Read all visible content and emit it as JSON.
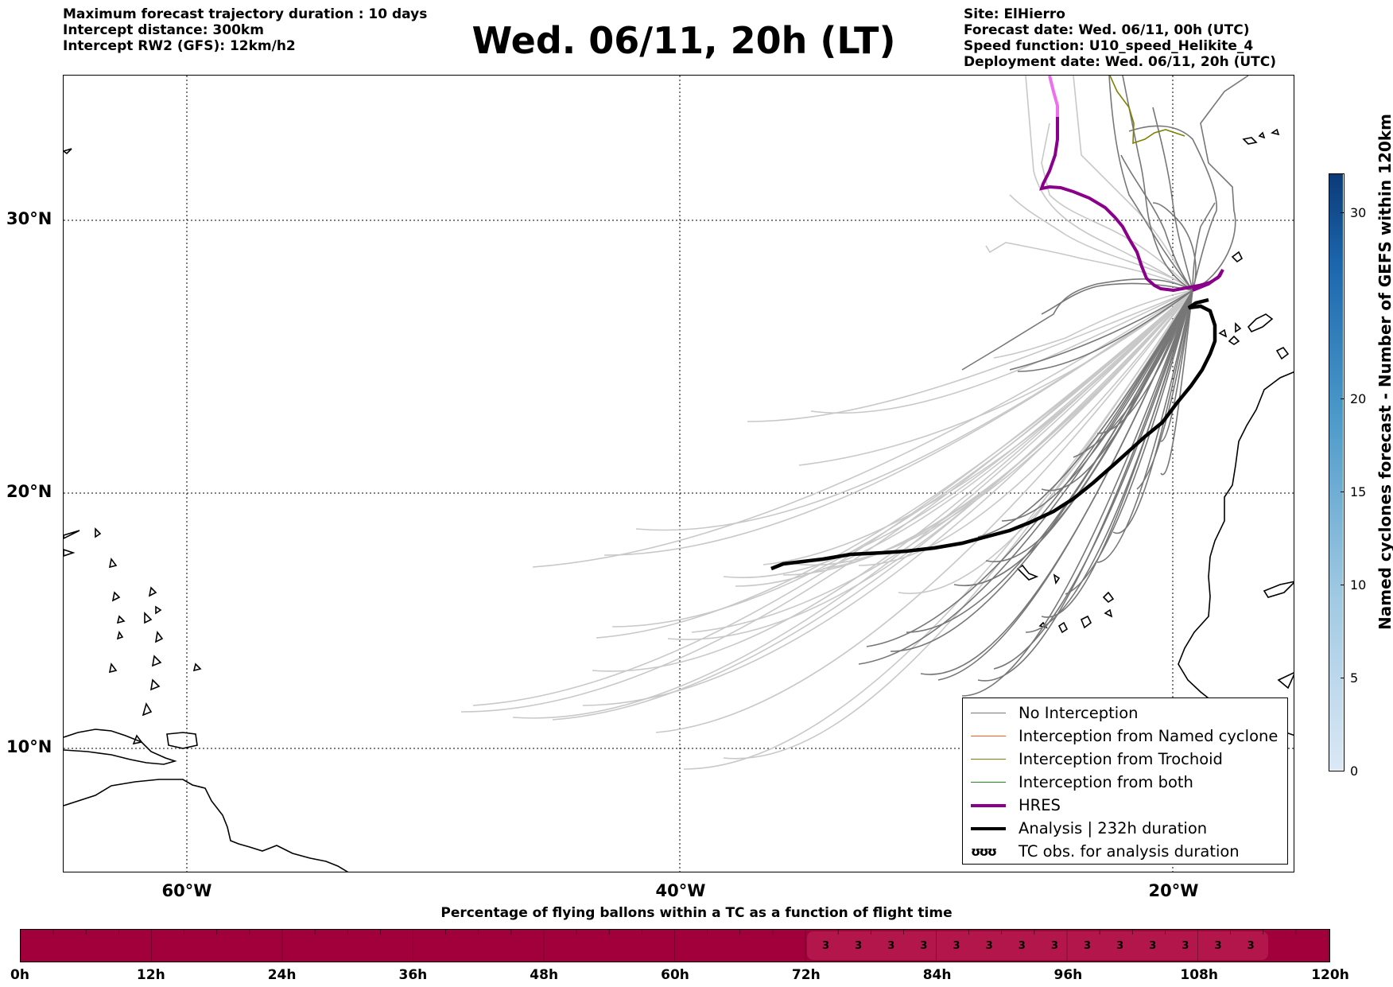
{
  "header": {
    "left_lines": [
      "Maximum forecast trajectory duration : 10 days",
      "Intercept distance: 300km",
      "Intercept RW2 (GFS):  12km/h2"
    ],
    "title": "Wed. 06/11, 20h (LT)",
    "right_lines": [
      "Site: ElHierro",
      "Forecast date: Wed. 06/11, 00h (UTC)",
      "Speed function: U10_speed_Helikite_4",
      "Deployment date: Wed. 06/11, 20h (UTC)"
    ]
  },
  "map": {
    "lat_labels": [
      "30°N",
      "20°N",
      "10°N"
    ],
    "lon_labels": [
      "60°W",
      "40°W",
      "20°W"
    ],
    "colors": {
      "no_interception": "#777777",
      "no_interception_light": "#c8c8c8",
      "named_cyclone": "#ff5a1e",
      "trochoid": "#808000",
      "both": "#1e8c1e",
      "hres": "#8b008b",
      "hres_light": "#ee6fee",
      "analysis": "#000000"
    }
  },
  "legend": {
    "items": [
      {
        "label": "No Interception",
        "color": "#777777",
        "style": "thin"
      },
      {
        "label": "Interception from Named cyclone",
        "color": "#ff5a1e",
        "style": "thin"
      },
      {
        "label": "Interception from Trochoid",
        "color": "#808000",
        "style": "thin"
      },
      {
        "label": "Interception from both",
        "color": "#1e8c1e",
        "style": "thin"
      },
      {
        "label": "HRES",
        "color": "#8b008b",
        "style": "thick"
      },
      {
        "label": "Analysis | 232h duration",
        "color": "#000000",
        "style": "thick"
      },
      {
        "label": "TC obs. for analysis duration",
        "color": "#000000",
        "style": "symbol",
        "symbol": "ʊʊʊ"
      }
    ]
  },
  "colorbar": {
    "label": "Named cyclones forecast - Number of GEFS within 120km",
    "ticks": [
      "0",
      "5",
      "10",
      "15",
      "20",
      "30"
    ],
    "range": [
      0,
      32
    ],
    "color_low": "#dbe8f5",
    "color_high": "#0b3a78"
  },
  "progress": {
    "title": "Percentage of flying ballons within a TC as a function of flight time",
    "tick_labels": [
      "0h",
      "12h",
      "24h",
      "36h",
      "48h",
      "60h",
      "72h",
      "84h",
      "96h",
      "108h",
      "120h"
    ],
    "cell_values": [
      "3",
      "3",
      "3",
      "3",
      "3",
      "3",
      "3",
      "3",
      "3",
      "3",
      "3",
      "3",
      "3",
      "3"
    ],
    "bar_color": "#a1003a",
    "highlight_color": "#b2164b"
  }
}
